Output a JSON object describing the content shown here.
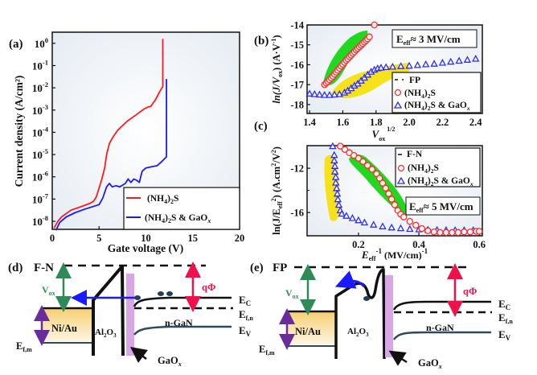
{
  "figure": {
    "panels": {
      "a": "(a)",
      "b": "(b)",
      "c": "(c)",
      "d": "(d)",
      "e": "(e)"
    }
  },
  "chart_data": [
    {
      "id": "a",
      "type": "line",
      "title": "",
      "xlabel": "Gate voltage (V)",
      "ylabel": "Current density (A/cm²)",
      "yscale": "log",
      "xlim": [
        0,
        20
      ],
      "ylim_log10": [
        -8.36,
        0.5
      ],
      "xticks": [
        0,
        5,
        10,
        15,
        20
      ],
      "yticks_log10": [
        0,
        -1,
        -2,
        -3,
        -4,
        -5,
        -6,
        -7,
        -8
      ],
      "legend": {
        "position": "bottom-right",
        "entries": [
          "(NH4)2S",
          "(NH4)2S & GaOx"
        ]
      },
      "series": [
        {
          "name": "(NH4)2S",
          "color": "#ff1a1a",
          "x": [
            0.2,
            0.6,
            1,
            2,
            3,
            4,
            4.4,
            4.7,
            5.0,
            5.3,
            5.6,
            5.8,
            6.1,
            6.5,
            7,
            8,
            9,
            9.8,
            10.3,
            10.5,
            11.0,
            11.5,
            11.8,
            11.8
          ],
          "log10_y": [
            -8.3,
            -8.0,
            -7.8,
            -7.5,
            -7.35,
            -7.2,
            -7.1,
            -6.9,
            -6.5,
            -6.1,
            -5.6,
            -5.0,
            -4.5,
            -4.2,
            -3.9,
            -3.5,
            -3.2,
            -2.95,
            -2.85,
            -2.85,
            -2.55,
            -2.15,
            -1.95,
            0.2
          ]
        },
        {
          "name": "(NH4)2S & GaOx",
          "color": "#1a1aff",
          "x": [
            0.4,
            0.8,
            1.5,
            2.5,
            3.5,
            5.0,
            5.4,
            5.8,
            6.1,
            6.4,
            6.8,
            7.2,
            7.8,
            8.1,
            8.4,
            8.7,
            9.0,
            9.3,
            9.6,
            10.0,
            10.6,
            11.2,
            11.6,
            12.2,
            12.2
          ],
          "log10_y": [
            -8.4,
            -8.05,
            -7.8,
            -7.6,
            -7.45,
            -7.25,
            -6.95,
            -6.45,
            -6.3,
            -6.45,
            -6.4,
            -6.45,
            -6.3,
            -6.1,
            -6.25,
            -6.1,
            -6.15,
            -6.25,
            -5.75,
            -5.6,
            -5.55,
            -5.5,
            -5.35,
            -5.1,
            -1.6
          ]
        }
      ]
    },
    {
      "id": "b",
      "type": "scatter",
      "title": "",
      "xlabel": "V_ox^1/2",
      "ylabel": "ln(J/V_ox) (A·V⁻¹)",
      "xlim": [
        1.385,
        2.44
      ],
      "ylim": [
        -18.45,
        -14.0
      ],
      "xticks": [
        1.4,
        1.6,
        1.8,
        2.0,
        2.2,
        2.4
      ],
      "yticks": [
        -14,
        -15,
        -16,
        -17,
        -18
      ],
      "annotation": "E_eff ≈ 3 MV/cm",
      "legend": {
        "position": "bottom-right",
        "entries": [
          "FP",
          "(NH4)2S",
          "(NH4)2S & GaOx"
        ]
      },
      "highlights": [
        {
          "name": "green-fit-band",
          "color": "#1fd81f"
        },
        {
          "name": "yellow-fit-band",
          "color": "#f5e21a"
        }
      ],
      "series": [
        {
          "name": "(NH4)2S",
          "marker": "circle",
          "color": "#ff2a2a",
          "x": [
            1.49,
            1.5,
            1.51,
            1.52,
            1.53,
            1.54,
            1.55,
            1.56,
            1.57,
            1.58,
            1.59,
            1.6,
            1.61,
            1.62,
            1.63,
            1.64,
            1.65,
            1.66,
            1.67,
            1.68,
            1.69,
            1.7,
            1.71,
            1.72,
            1.73,
            1.74,
            1.75,
            1.76,
            1.79
          ],
          "y": [
            -17.0,
            -16.92,
            -16.85,
            -16.76,
            -16.67,
            -16.58,
            -16.48,
            -16.38,
            -16.28,
            -16.18,
            -16.07,
            -15.98,
            -15.88,
            -15.78,
            -15.7,
            -15.6,
            -15.52,
            -15.43,
            -15.35,
            -15.26,
            -15.18,
            -15.1,
            -15.02,
            -14.94,
            -14.86,
            -14.78,
            -14.7,
            -14.6,
            -14.0
          ]
        },
        {
          "name": "(NH4)2S & GaOx",
          "marker": "triangle",
          "color": "#2a2aff",
          "x": [
            1.4,
            1.43,
            1.46,
            1.49,
            1.52,
            1.55,
            1.58,
            1.61,
            1.63,
            1.65,
            1.67,
            1.69,
            1.71,
            1.73,
            1.75,
            1.77,
            1.79,
            1.81,
            1.83,
            1.86,
            1.9,
            1.95,
            2.0,
            2.05,
            2.1,
            2.15,
            2.2,
            2.25,
            2.3,
            2.35,
            2.4
          ],
          "y": [
            -17.45,
            -17.48,
            -17.5,
            -17.52,
            -17.52,
            -17.5,
            -17.48,
            -17.4,
            -17.3,
            -17.18,
            -17.05,
            -16.95,
            -16.8,
            -16.65,
            -16.5,
            -16.35,
            -16.25,
            -16.18,
            -16.15,
            -16.12,
            -16.1,
            -16.07,
            -16.05,
            -16.02,
            -15.98,
            -15.95,
            -15.9,
            -15.85,
            -15.8,
            -15.75,
            -15.7
          ]
        }
      ]
    },
    {
      "id": "c",
      "type": "scatter",
      "title": "",
      "xlabel": "E_eff⁻¹ (MV/cm)⁻¹",
      "ylabel": "ln(J/E_eff²) (A.cm²/V²)",
      "xlim": [
        0.03,
        0.61
      ],
      "ylim": [
        -18.1,
        -9.96
      ],
      "xticks": [
        0.2,
        0.4,
        0.6
      ],
      "yticks": [
        -12,
        -16
      ],
      "annotation": "E_eff ≈ 5 MV/cm",
      "legend": {
        "position": "top-right",
        "entries": [
          "F-N",
          "(NH4)2S",
          "(NH4)2S & GaOx"
        ]
      },
      "highlights": [
        {
          "name": "green-fit-band",
          "color": "#1fd81f"
        },
        {
          "name": "yellow-fit-band",
          "color": "#f5e21a"
        }
      ],
      "series": [
        {
          "name": "(NH4)2S",
          "marker": "circle",
          "color": "#ff2a2a",
          "x": [
            0.14,
            0.155,
            0.17,
            0.185,
            0.2,
            0.215,
            0.23,
            0.245,
            0.26,
            0.27,
            0.28,
            0.29,
            0.3,
            0.31,
            0.32,
            0.33,
            0.34,
            0.35,
            0.37,
            0.39,
            0.41,
            0.43,
            0.45,
            0.47,
            0.49,
            0.51,
            0.53,
            0.55,
            0.57,
            0.59,
            0.6
          ],
          "y": [
            -10.0,
            -10.3,
            -10.6,
            -10.85,
            -11.1,
            -11.4,
            -11.75,
            -12.1,
            -12.5,
            -12.9,
            -13.35,
            -13.8,
            -14.3,
            -14.8,
            -15.3,
            -15.8,
            -16.15,
            -16.4,
            -16.8,
            -17.15,
            -17.45,
            -17.65,
            -17.75,
            -17.8,
            -17.8,
            -17.8,
            -17.8,
            -17.75,
            -17.75,
            -17.7,
            -17.7
          ]
        },
        {
          "name": "(NH4)2S & GaOx",
          "marker": "triangle",
          "color": "#2a2aff",
          "x": [
            0.115,
            0.12,
            0.12,
            0.122,
            0.122,
            0.125,
            0.125,
            0.128,
            0.13,
            0.132,
            0.135,
            0.14,
            0.145,
            0.16,
            0.18,
            0.2,
            0.22,
            0.25,
            0.28,
            0.31,
            0.34,
            0.37,
            0.4,
            0.43,
            0.46,
            0.49,
            0.52,
            0.55,
            0.58
          ],
          "y": [
            -10.0,
            -10.8,
            -11.3,
            -11.8,
            -12.3,
            -12.8,
            -13.3,
            -13.8,
            -14.3,
            -14.8,
            -15.3,
            -15.8,
            -16.1,
            -16.3,
            -16.5,
            -16.7,
            -16.9,
            -17.1,
            -17.25,
            -17.35,
            -17.42,
            -17.48,
            -17.52,
            -17.55,
            -17.57,
            -17.58,
            -17.6,
            -17.6,
            -17.6
          ]
        }
      ]
    }
  ],
  "text": {
    "a_ylabel": "Current density (A/cm²)",
    "a_xlabel": "Gate voltage (V)",
    "a_xticks": [
      "0",
      "5",
      "10",
      "15",
      "20"
    ],
    "a_yticks": [
      "0",
      "-1",
      "-2",
      "-3",
      "-4",
      "-5",
      "-6",
      "-7",
      "-8"
    ],
    "a_leg1": "(NH",
    "a_leg1b": "4",
    "a_leg1c": ")",
    "a_leg1d": "2",
    "a_leg1e": "S",
    "a_leg2e": "S & GaO",
    "a_leg2x": "x",
    "tick_base": "10",
    "b_yticks": [
      "-14",
      "-15",
      "-16",
      "-17",
      "-18"
    ],
    "b_xticks": [
      "1.4",
      "1.6",
      "1.8",
      "2.0",
      "2.2",
      "2.4"
    ],
    "b_xlabel_v": "V",
    "b_xlabel_sub": "ox",
    "b_xlabel_sup": "1/2",
    "b_ylabel": "ln(J/V",
    "b_ylabel_sub": "ox",
    "b_ylabel_tail": ") (A·V",
    "b_ylabel_sup": "-1",
    "b_ylabel_end": ")",
    "b_anno_e": "E",
    "b_anno_sub": "eff",
    "b_anno_val": "≈ 3 MV/cm",
    "b_leg_fp": "FP",
    "c_yticks": [
      "-12",
      "-16"
    ],
    "c_xticks": [
      "0.2",
      "0.4",
      "0.6"
    ],
    "c_ylabel": "ln(J/E",
    "c_ylabel_sub": "eff",
    "c_ylabel_sup": "2",
    "c_ylabel_tail": ") (A.cm",
    "c_ylabel_sup2": "2",
    "c_ylabel_end": "/V",
    "c_ylabel_sup3": "2",
    "c_ylabel_close": ")",
    "c_xlabel_e": "E",
    "c_xlabel_sub": "eff",
    "c_xlabel_sup": "-1",
    "c_xlabel_unit": " (MV/cm)",
    "c_xlabel_sup2": "-1",
    "c_anno_val": "≈ 5 MV/cm",
    "c_leg_fn": "F-N",
    "d_title": "F-N",
    "e_title": "FP",
    "vox": "V",
    "vox_sub": "ox",
    "qphi": "qΦ",
    "metal": "Ni/Au",
    "oxide_al": "Al",
    "oxide_2": "2",
    "oxide_o": "O",
    "oxide_3": "3",
    "ngan": "n-GaN",
    "gaox": "GaO",
    "gaox_sub": "x",
    "ec": "E",
    "ec_sub": "C",
    "efn_sub": "f,n",
    "ev_sub": "V",
    "efm_sub": "f,m"
  },
  "colors": {
    "red": "#ff1a1a",
    "blue": "#1a1aff",
    "vox_arrow": "#2e8b57",
    "qphi_arrow": "#f0104a",
    "efm_arrow": "#6a2c9c",
    "gaox_layer": "#d9a6e6",
    "metal_top": "#f6d27a",
    "metal_bottom": "#fdf6e4",
    "valence": "#2c4a63",
    "electron": "#1f3f5f",
    "tunnel_arrow": "#1a1aff"
  }
}
